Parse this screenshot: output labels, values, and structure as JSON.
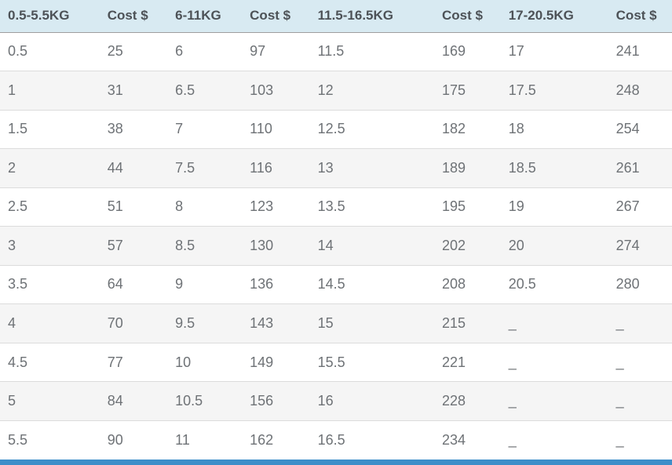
{
  "chart_data": {
    "type": "table",
    "columns": [
      "0.5-5.5KG",
      "Cost $",
      "6-11KG",
      "Cost $",
      "11.5-16.5KG",
      "Cost $",
      "17-20.5KG",
      "Cost $"
    ],
    "column_widths_pct": [
      14.8,
      10.1,
      11.1,
      10.1,
      18.5,
      9.9,
      16.0,
      9.5
    ],
    "rows": [
      [
        "0.5",
        "25",
        "6",
        "97",
        "11.5",
        "169",
        "17",
        "241"
      ],
      [
        "1",
        "31",
        "6.5",
        "103",
        "12",
        "175",
        "17.5",
        "248"
      ],
      [
        "1.5",
        "38",
        "7",
        "110",
        "12.5",
        "182",
        "18",
        "254"
      ],
      [
        "2",
        "44",
        "7.5",
        "116",
        "13",
        "189",
        "18.5",
        "261"
      ],
      [
        "2.5",
        "51",
        "8",
        "123",
        "13.5",
        "195",
        "19",
        "267"
      ],
      [
        "3",
        "57",
        "8.5",
        "130",
        "14",
        "202",
        "20",
        "274"
      ],
      [
        "3.5",
        "64",
        "9",
        "136",
        "14.5",
        "208",
        "20.5",
        "280"
      ],
      [
        "4",
        "70",
        "9.5",
        "143",
        "15",
        "215",
        "_",
        "_"
      ],
      [
        "4.5",
        "77",
        "10",
        "149",
        "15.5",
        "221",
        "_",
        "_"
      ],
      [
        "5",
        "84",
        "10.5",
        "156",
        "16",
        "228",
        "_",
        "_"
      ],
      [
        "5.5",
        "90",
        "11",
        "162",
        "16.5",
        "234",
        "_",
        "_"
      ]
    ]
  },
  "colors": {
    "header_bg": "#d8eaf2",
    "header_text": "#4d5257",
    "row_text": "#6e7276",
    "alt_row_bg": "#f5f5f5",
    "header_border": "#9e9e9e",
    "row_border": "#dcdcdc",
    "bottom_bar": "#3d8ec9"
  }
}
